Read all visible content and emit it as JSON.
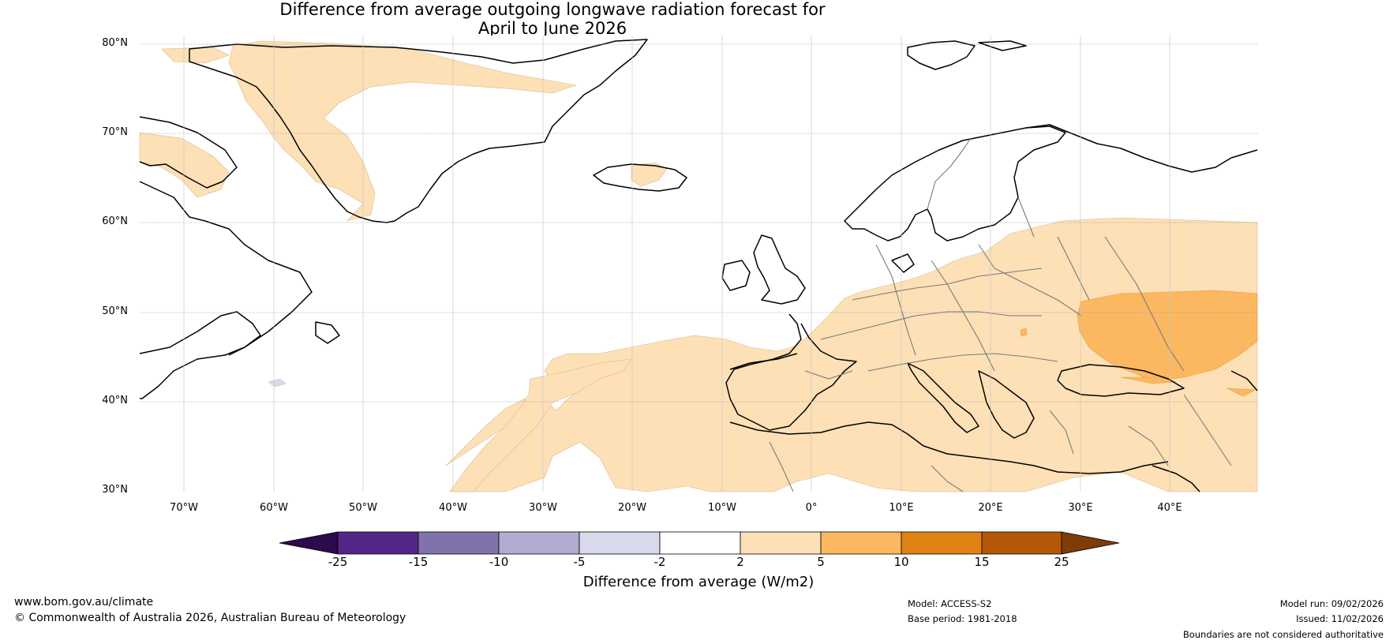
{
  "title": {
    "line1": "Difference from average outgoing longwave radiation forecast for",
    "line2": "April to June 2026"
  },
  "axes": {
    "lat_labels": [
      "80°N",
      "70°N",
      "60°N",
      "50°N",
      "40°N",
      "30°N"
    ],
    "lon_labels": [
      "70°W",
      "60°W",
      "50°W",
      "40°W",
      "30°W",
      "20°W",
      "10°W",
      "0°",
      "10°E",
      "20°E",
      "30°E",
      "40°E"
    ]
  },
  "legend": {
    "title": "Difference from average (W/m2)",
    "bounds": [
      "-25",
      "-15",
      "-10",
      "-5",
      "-2",
      "2",
      "5",
      "10",
      "15",
      "25"
    ],
    "colors": [
      "#2d0a4d",
      "#542688",
      "#8073ac",
      "#b2abd2",
      "#d8daeb",
      "#ffffff",
      "#fde0b6",
      "#fbb861",
      "#e08214",
      "#b35806",
      "#7f3b08"
    ]
  },
  "footer": {
    "website": "www.bom.gov.au/climate",
    "copyright": "© Commonwealth of Australia 2026, Australian Bureau of Meteorology",
    "model": "Model: ACCESS-S2",
    "base_period": "Base period: 1981-2018",
    "model_run": "Model run: 09/02/2026",
    "issued": "Issued: 11/02/2026",
    "disclaimer": "Boundaries are not considered authoritative"
  }
}
